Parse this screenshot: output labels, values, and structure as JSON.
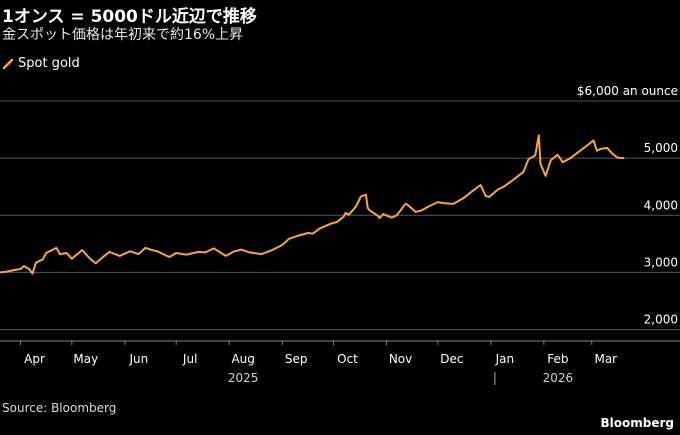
{
  "header": {
    "title": "1オンス = 5000ドル近辺で推移",
    "subtitle": "金スポット価格は年初来で約16%上昇"
  },
  "footer": {
    "source": "Source: Bloomberg",
    "brand": "Bloomberg"
  },
  "colors": {
    "background": "#000000",
    "line": "#f5a742",
    "grid": "#555555",
    "text": "#ffffff"
  },
  "chart_data": {
    "type": "line",
    "title": "1オンス = 5000ドル近辺で推移",
    "subtitle": "金スポット価格は年初来で約16%上昇",
    "ylim": [
      1800,
      6000
    ],
    "y_ticks": [
      {
        "value": 6000,
        "label": "$6,000 an ounce"
      },
      {
        "value": 5000,
        "label": "5,000"
      },
      {
        "value": 4000,
        "label": "4,000"
      },
      {
        "value": 3000,
        "label": "3,000"
      },
      {
        "value": 2000,
        "label": "2,000"
      }
    ],
    "x_range": [
      "2025-03-20",
      "2026-03-21"
    ],
    "x_ticks": [
      {
        "date": "2025-04-01",
        "label": "Apr"
      },
      {
        "date": "2025-05-01",
        "label": "May"
      },
      {
        "date": "2025-06-01",
        "label": "Jun"
      },
      {
        "date": "2025-07-01",
        "label": "Jul"
      },
      {
        "date": "2025-08-01",
        "label": "Aug"
      },
      {
        "date": "2025-09-01",
        "label": "Sep"
      },
      {
        "date": "2025-10-01",
        "label": "Oct"
      },
      {
        "date": "2025-11-01",
        "label": "Nov"
      },
      {
        "date": "2025-12-01",
        "label": "Dec"
      },
      {
        "date": "2026-01-01",
        "label": "Jan"
      },
      {
        "date": "2026-02-01",
        "label": "Feb"
      },
      {
        "date": "2026-03-01",
        "label": "Mar"
      }
    ],
    "year_labels": [
      {
        "date": "2025-08-01",
        "label": "2025"
      },
      {
        "date": "2026-02-01",
        "label": "2026"
      }
    ],
    "year_divider": "2026-01-01",
    "grid": true,
    "legend_position": "top-left",
    "series": [
      {
        "name": "Spot gold",
        "points": [
          [
            "2025-03-20",
            3000
          ],
          [
            "2025-03-24",
            3015
          ],
          [
            "2025-03-28",
            3040
          ],
          [
            "2025-04-01",
            3060
          ],
          [
            "2025-04-03",
            3110
          ],
          [
            "2025-04-06",
            3060
          ],
          [
            "2025-04-08",
            2980
          ],
          [
            "2025-04-10",
            3170
          ],
          [
            "2025-04-14",
            3230
          ],
          [
            "2025-04-16",
            3340
          ],
          [
            "2025-04-22",
            3430
          ],
          [
            "2025-04-24",
            3320
          ],
          [
            "2025-04-28",
            3340
          ],
          [
            "2025-05-01",
            3240
          ],
          [
            "2025-05-05",
            3340
          ],
          [
            "2025-05-07",
            3390
          ],
          [
            "2025-05-12",
            3230
          ],
          [
            "2025-05-15",
            3160
          ],
          [
            "2025-05-20",
            3290
          ],
          [
            "2025-05-23",
            3360
          ],
          [
            "2025-05-29",
            3290
          ],
          [
            "2025-06-04",
            3370
          ],
          [
            "2025-06-09",
            3320
          ],
          [
            "2025-06-13",
            3430
          ],
          [
            "2025-06-16",
            3400
          ],
          [
            "2025-06-20",
            3370
          ],
          [
            "2025-06-27",
            3270
          ],
          [
            "2025-07-01",
            3340
          ],
          [
            "2025-07-07",
            3310
          ],
          [
            "2025-07-14",
            3360
          ],
          [
            "2025-07-18",
            3350
          ],
          [
            "2025-07-23",
            3420
          ],
          [
            "2025-07-30",
            3290
          ],
          [
            "2025-08-04",
            3370
          ],
          [
            "2025-08-08",
            3400
          ],
          [
            "2025-08-13",
            3350
          ],
          [
            "2025-08-20",
            3320
          ],
          [
            "2025-08-26",
            3390
          ],
          [
            "2025-09-01",
            3480
          ],
          [
            "2025-09-05",
            3590
          ],
          [
            "2025-09-10",
            3640
          ],
          [
            "2025-09-16",
            3690
          ],
          [
            "2025-09-19",
            3680
          ],
          [
            "2025-09-23",
            3770
          ],
          [
            "2025-09-30",
            3860
          ],
          [
            "2025-10-03",
            3880
          ],
          [
            "2025-10-07",
            3980
          ],
          [
            "2025-10-08",
            4040
          ],
          [
            "2025-10-10",
            4010
          ],
          [
            "2025-10-14",
            4150
          ],
          [
            "2025-10-17",
            4330
          ],
          [
            "2025-10-20",
            4360
          ],
          [
            "2025-10-21",
            4130
          ],
          [
            "2025-10-22",
            4090
          ],
          [
            "2025-10-27",
            3990
          ],
          [
            "2025-10-28",
            3950
          ],
          [
            "2025-10-30",
            4020
          ],
          [
            "2025-11-04",
            3960
          ],
          [
            "2025-11-07",
            4000
          ],
          [
            "2025-11-12",
            4200
          ],
          [
            "2025-11-13",
            4190
          ],
          [
            "2025-11-18",
            4060
          ],
          [
            "2025-11-21",
            4080
          ],
          [
            "2025-11-26",
            4160
          ],
          [
            "2025-12-01",
            4230
          ],
          [
            "2025-12-05",
            4210
          ],
          [
            "2025-12-10",
            4200
          ],
          [
            "2025-12-16",
            4300
          ],
          [
            "2025-12-22",
            4440
          ],
          [
            "2025-12-26",
            4530
          ],
          [
            "2025-12-29",
            4340
          ],
          [
            "2025-12-31",
            4320
          ],
          [
            "2026-01-05",
            4450
          ],
          [
            "2026-01-09",
            4510
          ],
          [
            "2026-01-14",
            4620
          ],
          [
            "2026-01-20",
            4760
          ],
          [
            "2026-01-23",
            4980
          ],
          [
            "2026-01-27",
            5050
          ],
          [
            "2026-01-29",
            5400
          ],
          [
            "2026-01-30",
            4900
          ],
          [
            "2026-02-02",
            4690
          ],
          [
            "2026-02-05",
            4960
          ],
          [
            "2026-02-09",
            5060
          ],
          [
            "2026-02-12",
            4930
          ],
          [
            "2026-02-16",
            4990
          ],
          [
            "2026-02-20",
            5080
          ],
          [
            "2026-02-24",
            5170
          ],
          [
            "2026-02-27",
            5240
          ],
          [
            "2026-03-02",
            5310
          ],
          [
            "2026-03-04",
            5130
          ],
          [
            "2026-03-06",
            5160
          ],
          [
            "2026-03-10",
            5180
          ],
          [
            "2026-03-13",
            5080
          ],
          [
            "2026-03-16",
            5010
          ],
          [
            "2026-03-20",
            5000
          ]
        ]
      }
    ]
  }
}
